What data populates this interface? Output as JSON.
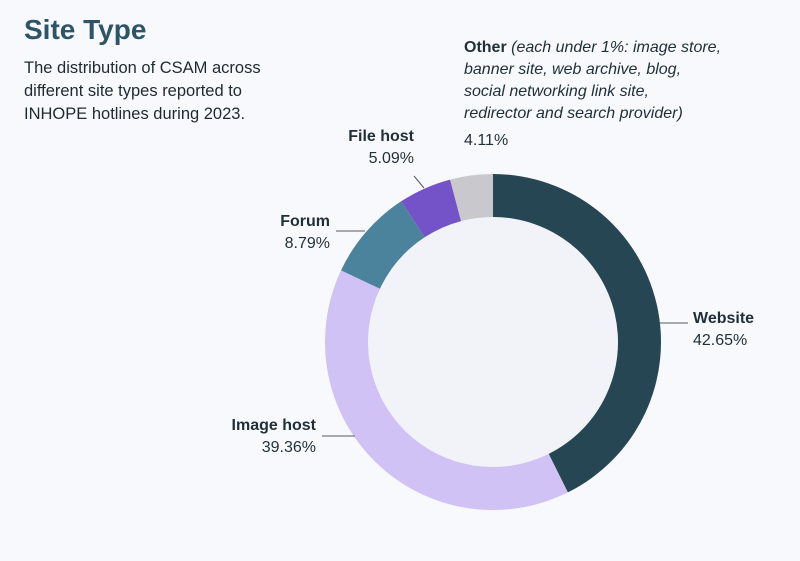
{
  "header": {
    "title": "Site Type",
    "subtitle": "The distribution of CSAM across different site types reported to INHOPE hotlines during 2023."
  },
  "chart_data": {
    "type": "pie",
    "title": "Site Type",
    "subtitle": "The distribution of CSAM across different site types reported to INHOPE hotlines during 2023.",
    "donut": true,
    "unit": "%",
    "slices": [
      {
        "label": "Website",
        "value": 42.65,
        "display": "42.65%",
        "color": "#264653"
      },
      {
        "label": "Image host",
        "value": 39.36,
        "display": "39.36%",
        "color": "#d1c2f5"
      },
      {
        "label": "Forum",
        "value": 8.79,
        "display": "8.79%",
        "color": "#4a839b"
      },
      {
        "label": "File host",
        "value": 5.09,
        "display": "5.09%",
        "color": "#7453c9"
      },
      {
        "label": "Other",
        "note_lines": [
          "(each under 1%: image store,",
          "banner site, web archive, blog,",
          "social networking link site,",
          "redirector and search provider)"
        ],
        "value": 4.11,
        "display": "4.11%",
        "color": "#c8c8cd"
      }
    ],
    "inner_fill": "#f2f3f8",
    "leader_color": "#555b60"
  }
}
